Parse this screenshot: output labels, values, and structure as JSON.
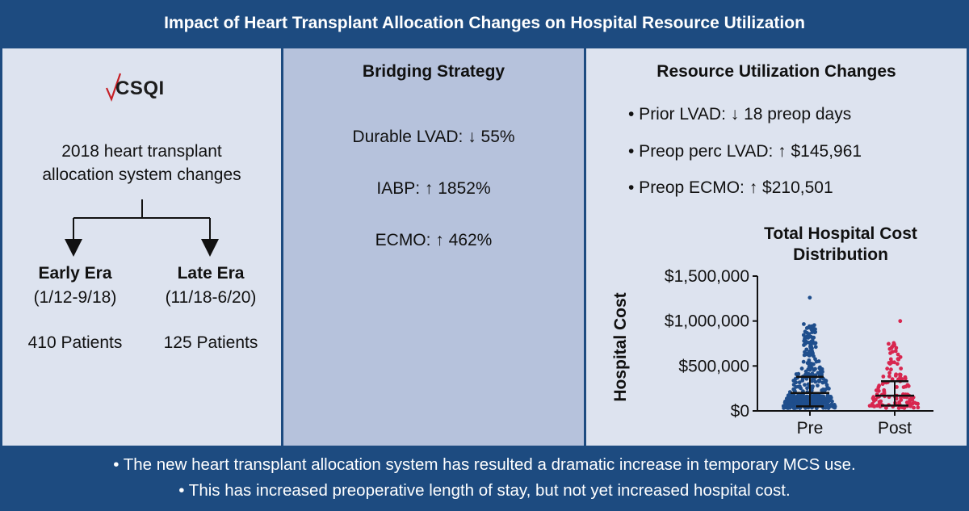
{
  "title": "Impact of Heart Transplant Allocation Changes on Hospital Resource Utilization",
  "left_panel": {
    "logo_text": "CSQI",
    "description_lines": [
      "2018 heart transplant",
      "allocation system changes"
    ],
    "early": {
      "label": "Early Era",
      "dates": "(1/12-9/18)",
      "patients": "410 Patients"
    },
    "late": {
      "label": "Late Era",
      "dates": "(11/18-6/20)",
      "patients": "125 Patients"
    }
  },
  "middle_panel": {
    "heading": "Bridging Strategy",
    "stats": [
      "Durable LVAD: ↓ 55%",
      "IABP: ↑ 1852%",
      "ECMO: ↑ 462%"
    ]
  },
  "right_panel": {
    "heading": "Resource Utilization Changes",
    "bullets": [
      "• Prior LVAD: ↓ 18 preop days",
      "• Preop perc LVAD: ↑ $145,961",
      "• Preop ECMO: ↑ $210,501"
    ]
  },
  "footer": [
    "• The new heart transplant allocation system has resulted a dramatic increase in temporary MCS use.",
    "• This has increased preoperative length of stay, but not yet increased hospital cost."
  ],
  "colors": {
    "navy": "#1d4b80",
    "pre": "#1f4e8c",
    "post": "#d8264f"
  },
  "chart_data": {
    "type": "scatter",
    "title_lines": [
      "Total Hospital Cost",
      "Distribution"
    ],
    "ylabel": "Hospital Cost",
    "xlabel": "",
    "categories": [
      "Pre",
      "Post"
    ],
    "yticks": [
      "$0",
      "$500,000",
      "$1,000,000",
      "$1,500,000"
    ],
    "ytick_values": [
      0,
      500000,
      1000000,
      1500000
    ],
    "ylim": [
      0,
      1500000
    ],
    "series": [
      {
        "name": "Pre",
        "n": 410,
        "median": 200000,
        "whisker_low": 50000,
        "whisker_high": 380000,
        "max": 1260000
      },
      {
        "name": "Post",
        "n": 125,
        "median": 170000,
        "whisker_low": 60000,
        "whisker_high": 330000,
        "max": 1000000
      }
    ]
  }
}
